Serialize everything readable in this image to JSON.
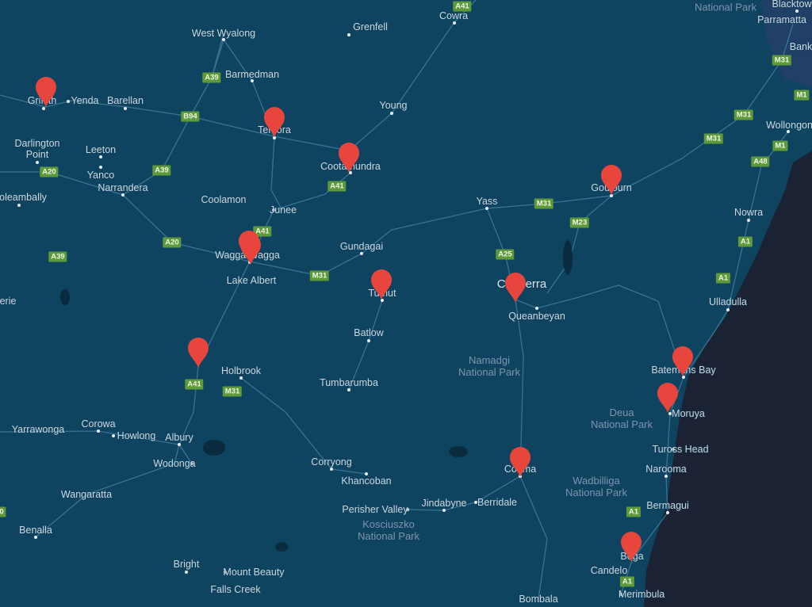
{
  "map": {
    "colors": {
      "land": "#0f4461",
      "ocean": "#1a2234",
      "road": "#3d7a98",
      "marker": "#e8453c",
      "shield": "#5e9a3a",
      "urban": "#2a3f6a"
    },
    "places": [
      "Cowra",
      "Grenfell",
      "West Wyalong",
      "Barmedman",
      "Griffith",
      "Yenda",
      "Barellan",
      "Temora",
      "Young",
      "Darlington\nPoint",
      "Leeton",
      "Yanco",
      "Narrandera",
      "Cootamundra",
      "oleambally",
      "Coolamon",
      "Junee",
      "Yass",
      "Goulburn",
      "Nowra",
      "Gundagai",
      "Wagga Wagga",
      "Lake Albert",
      "Canberra",
      "Tumut",
      "Queanbeyan",
      "Ulladulla",
      "Batlow",
      "Holbrook",
      "Batemans Bay",
      "Tumbarumba",
      "Moruya",
      "Yarrawonga",
      "Corowa",
      "Howlong",
      "Albury",
      "Tuross Head",
      "Wodonga",
      "Corryong",
      "Narooma",
      "Cooma",
      "Khancoban",
      "Wangaratta",
      "Perisher Valley",
      "Jindabyne",
      "Berridale",
      "Bermagui",
      "Benalla",
      "Bega",
      "Bright",
      "Mount Beauty",
      "Candelo",
      "Falls Creek",
      "Merimbula",
      "Bombala",
      "Wollongong",
      "Blacktown",
      "Parramatta",
      "Bank",
      "erie"
    ],
    "parks": [
      "Namadgi\nNational Park",
      "Deua\nNational Park",
      "Wadbilliga\nNational Park",
      "Kosciuszko\nNational Park",
      "National Park"
    ],
    "roads": [
      "A41",
      "A39",
      "B94",
      "A39",
      "A20",
      "A41",
      "A41",
      "A20",
      "A39",
      "M31",
      "A25",
      "M31",
      "M23",
      "M31",
      "M31",
      "M31",
      "M1",
      "M1",
      "A48",
      "A1",
      "A1",
      "A41",
      "M31",
      "A1",
      "A1",
      "0"
    ],
    "markers": [
      "Griffith",
      "Temora",
      "Cootamundra",
      "Goulburn",
      "Wagga Wagga",
      "Wagga Wagga",
      "Tumut",
      "Canberra",
      "Batemans Bay",
      "Moruya",
      "Holbrook area",
      "Cooma",
      "Bega"
    ],
    "marker_icon": "map-pin-icon"
  }
}
